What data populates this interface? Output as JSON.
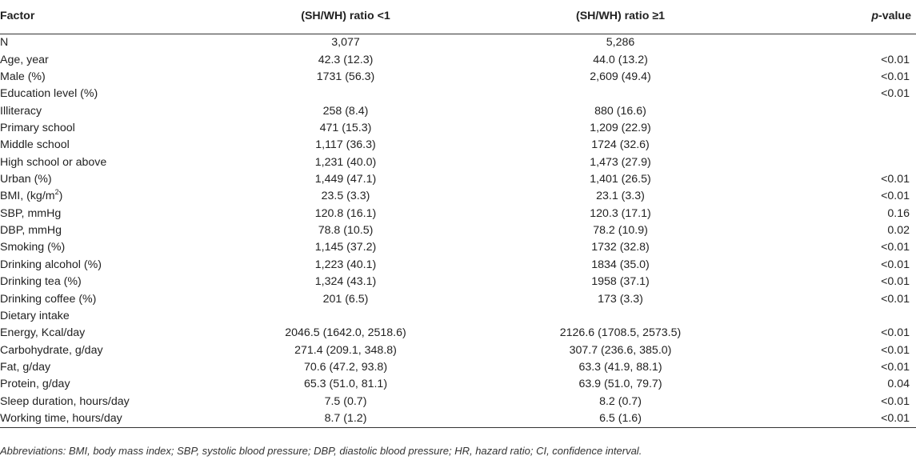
{
  "header": {
    "factor": "Factor",
    "group1": "(SH/WH) ratio <1",
    "group2": "(SH/WH) ratio ≥1",
    "p_italic": "p",
    "p_suffix": "-value"
  },
  "rows": [
    {
      "factor": "N",
      "g1": "3,077",
      "g2": "5,286",
      "p": ""
    },
    {
      "factor": "Age, year",
      "g1": "42.3 (12.3)",
      "g2": "44.0 (13.2)",
      "p": "<0.01"
    },
    {
      "factor": "Male (%)",
      "g1": "1731 (56.3)",
      "g2": "2,609 (49.4)",
      "p": "<0.01"
    },
    {
      "factor": "Education level (%)",
      "g1": "",
      "g2": "",
      "p": "<0.01"
    },
    {
      "factor": "Illiteracy",
      "g1": "258 (8.4)",
      "g2": "880 (16.6)",
      "p": ""
    },
    {
      "factor": "Primary school",
      "g1": "471 (15.3)",
      "g2": "1,209 (22.9)",
      "p": ""
    },
    {
      "factor": "Middle school",
      "g1": "1,117 (36.3)",
      "g2": "1724 (32.6)",
      "p": ""
    },
    {
      "factor": "High school or above",
      "g1": "1,231 (40.0)",
      "g2": "1,473 (27.9)",
      "p": ""
    },
    {
      "factor": "Urban (%)",
      "g1": "1,449 (47.1)",
      "g2": "1,401 (26.5)",
      "p": "<0.01"
    },
    {
      "factor": "BMI, (kg/m",
      "factor_sup": "2",
      "factor_tail": ")",
      "g1": "23.5 (3.3)",
      "g2": "23.1 (3.3)",
      "p": "<0.01"
    },
    {
      "factor": "SBP, mmHg",
      "g1": "120.8 (16.1)",
      "g2": "120.3 (17.1)",
      "p": "0.16"
    },
    {
      "factor": "DBP, mmHg",
      "g1": "78.8 (10.5)",
      "g2": "78.2 (10.9)",
      "p": "0.02"
    },
    {
      "factor": "Smoking (%)",
      "g1": "1,145 (37.2)",
      "g2": "1732 (32.8)",
      "p": "<0.01"
    },
    {
      "factor": "Drinking alcohol (%)",
      "g1": "1,223 (40.1)",
      "g2": "1834 (35.0)",
      "p": "<0.01"
    },
    {
      "factor": "Drinking tea (%)",
      "g1": "1,324 (43.1)",
      "g2": "1958 (37.1)",
      "p": "<0.01"
    },
    {
      "factor": "Drinking coffee (%)",
      "g1": "201 (6.5)",
      "g2": "173 (3.3)",
      "p": "<0.01"
    },
    {
      "factor": "Dietary intake",
      "g1": "",
      "g2": "",
      "p": ""
    },
    {
      "factor": "Energy, Kcal/day",
      "g1": "2046.5 (1642.0, 2518.6)",
      "g2": "2126.6 (1708.5, 2573.5)",
      "p": "<0.01"
    },
    {
      "factor": "Carbohydrate, g/day",
      "g1": "271.4 (209.1, 348.8)",
      "g2": "307.7 (236.6, 385.0)",
      "p": "<0.01"
    },
    {
      "factor": "Fat, g/day",
      "g1": "70.6 (47.2, 93.8)",
      "g2": "63.3 (41.9, 88.1)",
      "p": "<0.01"
    },
    {
      "factor": "Protein, g/day",
      "g1": "65.3 (51.0, 81.1)",
      "g2": "63.9 (51.0, 79.7)",
      "p": "0.04"
    },
    {
      "factor": "Sleep duration, hours/day",
      "g1": "7.5 (0.7)",
      "g2": "8.2 (0.7)",
      "p": "<0.01"
    },
    {
      "factor": "Working time, hours/day",
      "g1": "8.7 (1.2)",
      "g2": "6.5 (1.6)",
      "p": "<0.01"
    }
  ],
  "footnote": "Abbreviations: BMI, body mass index; SBP, systolic blood pressure; DBP, diastolic blood pressure; HR, hazard ratio; CI, confidence interval."
}
